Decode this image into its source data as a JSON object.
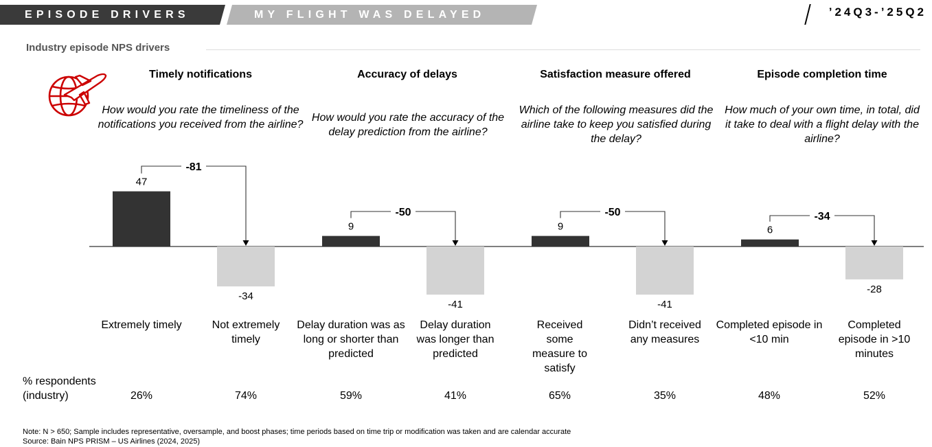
{
  "header": {
    "left_banner": "EPISODE DRIVERS",
    "right_banner": "MY FLIGHT WAS DELAYED",
    "period": "’24Q3-’25Q2"
  },
  "section_title": "Industry episode NPS drivers",
  "colors": {
    "dark_bar": "#333333",
    "light_bar": "#d3d3d3",
    "icon": "#cc0000"
  },
  "drivers": [
    {
      "title": "Timely notifications",
      "question": "How would you rate the timeliness of the notifications you received from the airline?",
      "difference": "-81",
      "categories": [
        {
          "label": "Extremely timely",
          "value": "47",
          "share": "26%"
        },
        {
          "label": "Not extremely timely",
          "value": "-34",
          "share": "74%"
        }
      ]
    },
    {
      "title": "Accuracy of delays",
      "question": "How would you rate the accuracy of the delay prediction from the airline?",
      "difference": "-50",
      "categories": [
        {
          "label": "Delay duration was as long or shorter than predicted",
          "value": "9",
          "share": "59%"
        },
        {
          "label": "Delay duration was longer than predicted",
          "value": "-41",
          "share": "41%"
        }
      ]
    },
    {
      "title": "Satisfaction measure offered",
      "question": "Which of the following measures did the airline take to keep you satisfied during the delay?",
      "difference": "-50",
      "categories": [
        {
          "label": "Received some measure to satisfy",
          "value": "9",
          "share": "65%"
        },
        {
          "label": "Didn’t received any measures",
          "value": "-41",
          "share": "35%"
        }
      ]
    },
    {
      "title": "Episode completion time",
      "question": "How much of your own time, in total, did it take to deal with a flight delay with the airline?",
      "difference": "-34",
      "categories": [
        {
          "label": "Completed episode in <10 min",
          "value": "6",
          "share": "48%"
        },
        {
          "label": "Completed episode in >10 minutes",
          "value": "-28",
          "share": "52%"
        }
      ]
    }
  ],
  "pct_title": "% respondents (industry)",
  "chart_data": {
    "type": "bar",
    "title": "Industry episode NPS drivers",
    "categories": [
      "Extremely timely",
      "Not extremely timely",
      "Delay duration was as long or shorter than predicted",
      "Delay duration was longer than predicted",
      "Received some measure to satisfy",
      "Didn’t received any measures",
      "Completed episode in <10 min",
      "Completed episode in >10 minutes"
    ],
    "values": [
      47,
      -34,
      9,
      -41,
      9,
      -41,
      6,
      -28
    ],
    "differences": [
      -81,
      -50,
      -50,
      -34
    ],
    "respondent_share_pct": [
      26,
      74,
      59,
      41,
      65,
      35,
      48,
      52
    ],
    "ylim": [
      -50,
      50
    ],
    "xlabel": "",
    "ylabel": "",
    "grid": false
  },
  "notes": {
    "note": "Note: N > 650; Sample includes representative, oversample, and boost phases; time periods based on time trip or modification was taken and are calendar accurate",
    "source": "Source: Bain NPS PRISM – US Airlines (2024, 2025)"
  }
}
